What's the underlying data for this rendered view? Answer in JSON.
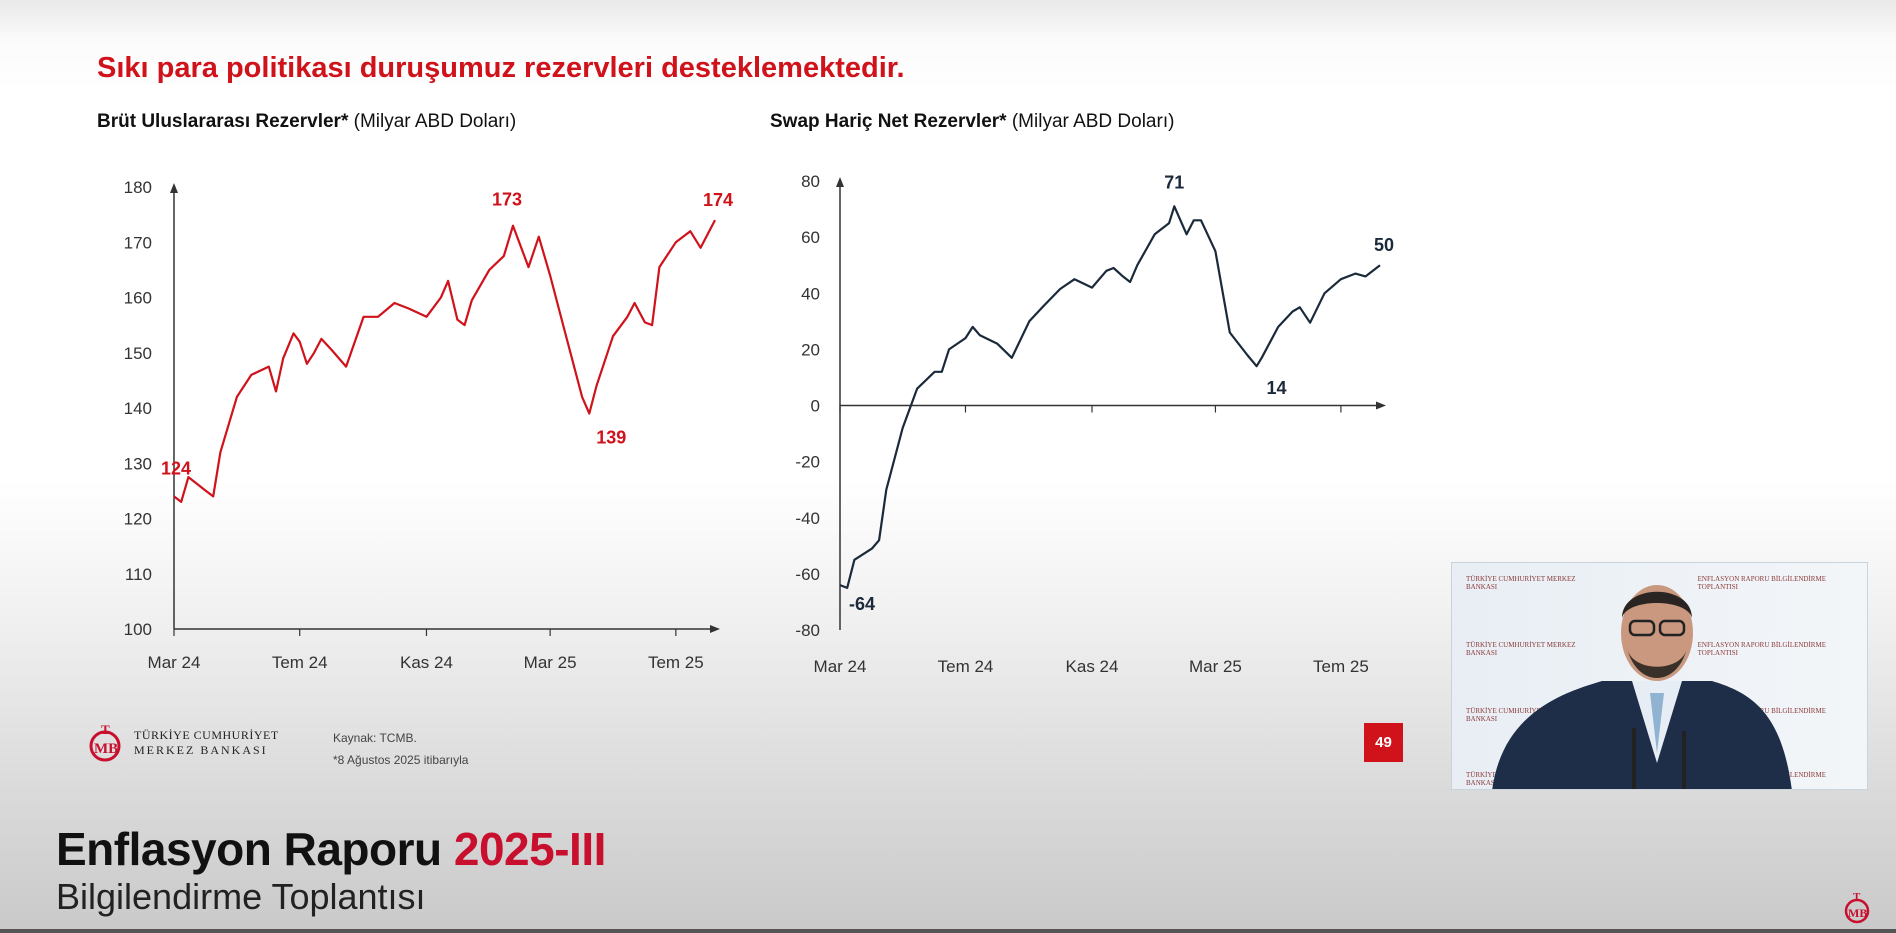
{
  "slide": {
    "title": "Sıkı para politikası duruşumuz rezervleri desteklemektedir.",
    "page_number": "49",
    "source": "Kaynak: TCMB.",
    "footnote": "*8 Ağustos 2025 itibarıyla",
    "logo_line1": "TÜRKİYE CUMHURİYET",
    "logo_line2": "MERKEZ BANKASI",
    "logo_mark": "TCMB"
  },
  "banner": {
    "title": "Enflasyon Raporu",
    "edition": "2025-III",
    "subtitle": "Bilgilendirme Toplantısı"
  },
  "video": {
    "panel_text_1": "TÜRKİYE CUMHURİYET MERKEZ BANKASI",
    "panel_text_2": "ENFLASYON RAPORU BİLGİLENDİRME TOPLANTISI"
  },
  "colors": {
    "red": "#d0121b",
    "navy": "#1b2a3a"
  },
  "chart_data": [
    {
      "type": "line",
      "title_bold": "Brüt Uluslararası Rezervler*",
      "title_unit": "(Milyar ABD Doları)",
      "color": "#d0121b",
      "ylim": [
        100,
        180
      ],
      "yticks": [
        100,
        110,
        120,
        130,
        140,
        150,
        160,
        170,
        180
      ],
      "xticks": [
        {
          "date": "2024-03-01",
          "label": "Mar 24"
        },
        {
          "date": "2024-07-01",
          "label": "Tem 24"
        },
        {
          "date": "2024-11-01",
          "label": "Kas 24"
        },
        {
          "date": "2025-03-01",
          "label": "Mar 25"
        },
        {
          "date": "2025-07-01",
          "label": "Tem 25"
        }
      ],
      "xlim": [
        "2024-03-01",
        "2025-08-08"
      ],
      "grid": false,
      "points": [
        [
          "2024-03-01",
          124
        ],
        [
          "2024-03-08",
          123
        ],
        [
          "2024-03-15",
          127.5
        ],
        [
          "2024-04-01",
          125
        ],
        [
          "2024-04-08",
          124
        ],
        [
          "2024-04-15",
          132
        ],
        [
          "2024-05-01",
          142
        ],
        [
          "2024-05-15",
          146
        ],
        [
          "2024-06-01",
          147.5
        ],
        [
          "2024-06-08",
          143
        ],
        [
          "2024-06-15",
          149
        ],
        [
          "2024-06-25",
          153.5
        ],
        [
          "2024-07-01",
          152
        ],
        [
          "2024-07-08",
          148
        ],
        [
          "2024-07-15",
          150
        ],
        [
          "2024-07-22",
          152.5
        ],
        [
          "2024-08-01",
          150.5
        ],
        [
          "2024-08-15",
          147.5
        ],
        [
          "2024-09-01",
          156.5
        ],
        [
          "2024-09-15",
          156.5
        ],
        [
          "2024-10-01",
          159
        ],
        [
          "2024-10-15",
          158
        ],
        [
          "2024-11-01",
          156.5
        ],
        [
          "2024-11-15",
          160
        ],
        [
          "2024-11-22",
          163
        ],
        [
          "2024-12-01",
          156
        ],
        [
          "2024-12-08",
          155
        ],
        [
          "2024-12-15",
          159.5
        ],
        [
          "2025-01-01",
          165
        ],
        [
          "2025-01-15",
          167.5
        ],
        [
          "2025-01-24",
          173
        ],
        [
          "2025-02-08",
          165.5
        ],
        [
          "2025-02-18",
          171
        ],
        [
          "2025-03-01",
          164
        ],
        [
          "2025-03-15",
          154
        ],
        [
          "2025-04-01",
          142
        ],
        [
          "2025-04-08",
          139
        ],
        [
          "2025-04-15",
          144
        ],
        [
          "2025-05-01",
          153
        ],
        [
          "2025-05-15",
          156.5
        ],
        [
          "2025-05-22",
          159
        ],
        [
          "2025-06-01",
          155.5
        ],
        [
          "2025-06-08",
          155
        ],
        [
          "2025-06-15",
          165.5
        ],
        [
          "2025-07-01",
          170
        ],
        [
          "2025-07-15",
          172
        ],
        [
          "2025-07-25",
          169
        ],
        [
          "2025-08-08",
          174
        ]
      ],
      "annotations": [
        {
          "date": "2024-03-01",
          "value": 124,
          "label": "124"
        },
        {
          "date": "2025-01-24",
          "value": 173,
          "label": "173"
        },
        {
          "date": "2025-04-08",
          "value": 139,
          "label": "139"
        },
        {
          "date": "2025-08-08",
          "value": 174,
          "label": "174"
        }
      ]
    },
    {
      "type": "line",
      "title_bold": "Swap Hariç Net Rezervler*",
      "title_unit": "(Milyar ABD Doları)",
      "color": "#1b2a3a",
      "ylim": [
        -80,
        80
      ],
      "yticks": [
        -80,
        -60,
        -40,
        -20,
        0,
        20,
        40,
        60,
        80
      ],
      "xticks": [
        {
          "date": "2024-03-01",
          "label": "Mar 24"
        },
        {
          "date": "2024-07-01",
          "label": "Tem 24"
        },
        {
          "date": "2024-11-01",
          "label": "Kas 24"
        },
        {
          "date": "2025-03-01",
          "label": "Mar 25"
        },
        {
          "date": "2025-07-01",
          "label": "Tem 25"
        }
      ],
      "xlim": [
        "2024-03-01",
        "2025-08-08"
      ],
      "grid": false,
      "points": [
        [
          "2024-03-01",
          -64
        ],
        [
          "2024-03-08",
          -65
        ],
        [
          "2024-03-15",
          -55
        ],
        [
          "2024-04-01",
          -51
        ],
        [
          "2024-04-08",
          -48
        ],
        [
          "2024-04-15",
          -30
        ],
        [
          "2024-05-01",
          -8
        ],
        [
          "2024-05-15",
          6
        ],
        [
          "2024-06-01",
          12
        ],
        [
          "2024-06-08",
          12
        ],
        [
          "2024-06-15",
          20
        ],
        [
          "2024-07-01",
          24
        ],
        [
          "2024-07-08",
          28
        ],
        [
          "2024-07-15",
          25
        ],
        [
          "2024-08-01",
          22
        ],
        [
          "2024-08-15",
          17
        ],
        [
          "2024-09-01",
          30
        ],
        [
          "2024-09-15",
          35.5
        ],
        [
          "2024-10-01",
          41.5
        ],
        [
          "2024-10-15",
          45
        ],
        [
          "2024-11-01",
          42
        ],
        [
          "2024-11-15",
          48
        ],
        [
          "2024-11-22",
          49
        ],
        [
          "2024-12-01",
          46
        ],
        [
          "2024-12-08",
          44
        ],
        [
          "2024-12-15",
          50
        ],
        [
          "2025-01-01",
          61
        ],
        [
          "2025-01-15",
          65
        ],
        [
          "2025-01-20",
          71
        ],
        [
          "2025-02-01",
          61
        ],
        [
          "2025-02-08",
          66
        ],
        [
          "2025-02-15",
          66
        ],
        [
          "2025-03-01",
          55
        ],
        [
          "2025-03-15",
          26
        ],
        [
          "2025-04-01",
          18
        ],
        [
          "2025-04-10",
          14
        ],
        [
          "2025-04-15",
          17
        ],
        [
          "2025-05-01",
          28
        ],
        [
          "2025-05-15",
          33.5
        ],
        [
          "2025-05-22",
          35
        ],
        [
          "2025-06-01",
          29.5
        ],
        [
          "2025-06-15",
          40
        ],
        [
          "2025-07-01",
          45
        ],
        [
          "2025-07-15",
          47
        ],
        [
          "2025-07-25",
          46
        ],
        [
          "2025-08-08",
          50
        ]
      ],
      "annotations": [
        {
          "date": "2024-03-01",
          "value": -64,
          "label": "-64"
        },
        {
          "date": "2025-01-20",
          "value": 71,
          "label": "71"
        },
        {
          "date": "2025-04-10",
          "value": 14,
          "label": "14"
        },
        {
          "date": "2025-08-08",
          "value": 50,
          "label": "50"
        }
      ]
    }
  ]
}
